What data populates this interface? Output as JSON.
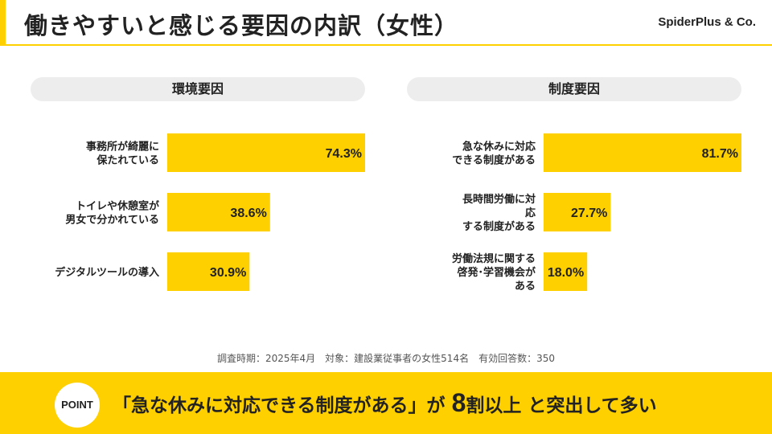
{
  "header": {
    "title": "働きやすいと感じる要因の内訳（女性）",
    "brand": "SpiderPlus & Co."
  },
  "colors": {
    "accent": "#FFD000",
    "panel_header_bg": "#EDEDED",
    "text": "#222222"
  },
  "chart_data": [
    {
      "type": "bar",
      "orientation": "horizontal",
      "title": "環境要因",
      "categories": [
        [
          "事務所が綺麗に",
          "保たれている"
        ],
        [
          "トイレや休憩室が",
          "男女で分かれている"
        ],
        [
          "デジタルツールの導入"
        ]
      ],
      "values": [
        74.3,
        38.6,
        30.9
      ],
      "value_labels": [
        "74.3%",
        "38.6%",
        "30.9%"
      ],
      "unit": "%",
      "xlim": [
        0,
        74.3
      ],
      "grid": false
    },
    {
      "type": "bar",
      "orientation": "horizontal",
      "title": "制度要因",
      "categories": [
        [
          "急な休みに対応",
          "できる制度がある"
        ],
        [
          "長時間労働に対",
          "応",
          "する制度がある"
        ],
        [
          "労働法規に関する",
          "啓発･学習機会が",
          "ある"
        ]
      ],
      "values": [
        81.7,
        27.7,
        18.0
      ],
      "value_labels": [
        "81.7%",
        "27.7%",
        "18.0%"
      ],
      "unit": "%",
      "xlim": [
        0,
        81.7
      ],
      "grid": false
    }
  ],
  "footnote": "調査時期：2025年4月　対象：建設業従事者の女性514名　有効回答数：350",
  "point": {
    "badge": "POINT",
    "text_before": "「急な休みに対応できる制度がある」が ",
    "highlight": "8",
    "text_after": "割以上 と突出して多い"
  }
}
